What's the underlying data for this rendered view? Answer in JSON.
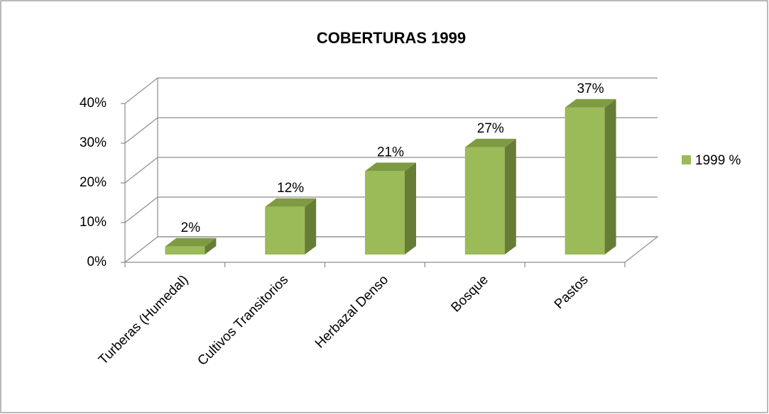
{
  "chart_data": {
    "type": "bar3d",
    "title": "COBERTURAS 1999",
    "categories": [
      "Turberas (Humedal)",
      "Cultivos Transitorios",
      "Herbazal Denso",
      "Bosque",
      "Pastos"
    ],
    "series": [
      {
        "name": "1999 %",
        "color": "#9bbb59",
        "values": [
          2,
          12,
          21,
          27,
          37
        ],
        "value_labels": [
          "2%",
          "12%",
          "21%",
          "27%",
          "37%"
        ]
      }
    ],
    "ylim": [
      0,
      40
    ],
    "yticks": [
      {
        "value": 0,
        "label": "0%"
      },
      {
        "value": 10,
        "label": "10%"
      },
      {
        "value": 20,
        "label": "20%"
      },
      {
        "value": 30,
        "label": "30%"
      },
      {
        "value": 40,
        "label": "40%"
      }
    ],
    "grid": true,
    "legend": "right"
  }
}
